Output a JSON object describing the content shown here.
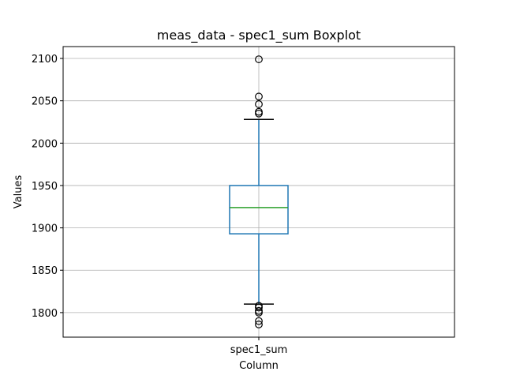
{
  "chart_data": {
    "type": "box",
    "title": "meas_data - spec1_sum Boxplot",
    "xlabel": "Column",
    "ylabel": "Values",
    "categories": [
      "spec1_sum"
    ],
    "grid": true,
    "ylim": [
      1771,
      2114
    ],
    "yticks": [
      1800,
      1850,
      1900,
      1950,
      2000,
      2050,
      2100
    ],
    "ytick_labels": [
      "1800",
      "1850",
      "1900",
      "1950",
      "2000",
      "2050",
      "2100"
    ],
    "series": [
      {
        "box": {
          "whisker_low": 1810,
          "q1": 1893,
          "median": 1924,
          "q3": 1950,
          "whisker_high": 2028
        },
        "outliers": [
          2099,
          2055,
          2046,
          2037,
          2035,
          1808,
          1806,
          1802,
          1800,
          1790,
          1786
        ]
      }
    ],
    "colors": {
      "box": "#1f77b4",
      "median": "#2ca02c",
      "whisker_cap": "#000000",
      "grid": "#b0b0b0",
      "outlier_edge": "#000000"
    }
  }
}
